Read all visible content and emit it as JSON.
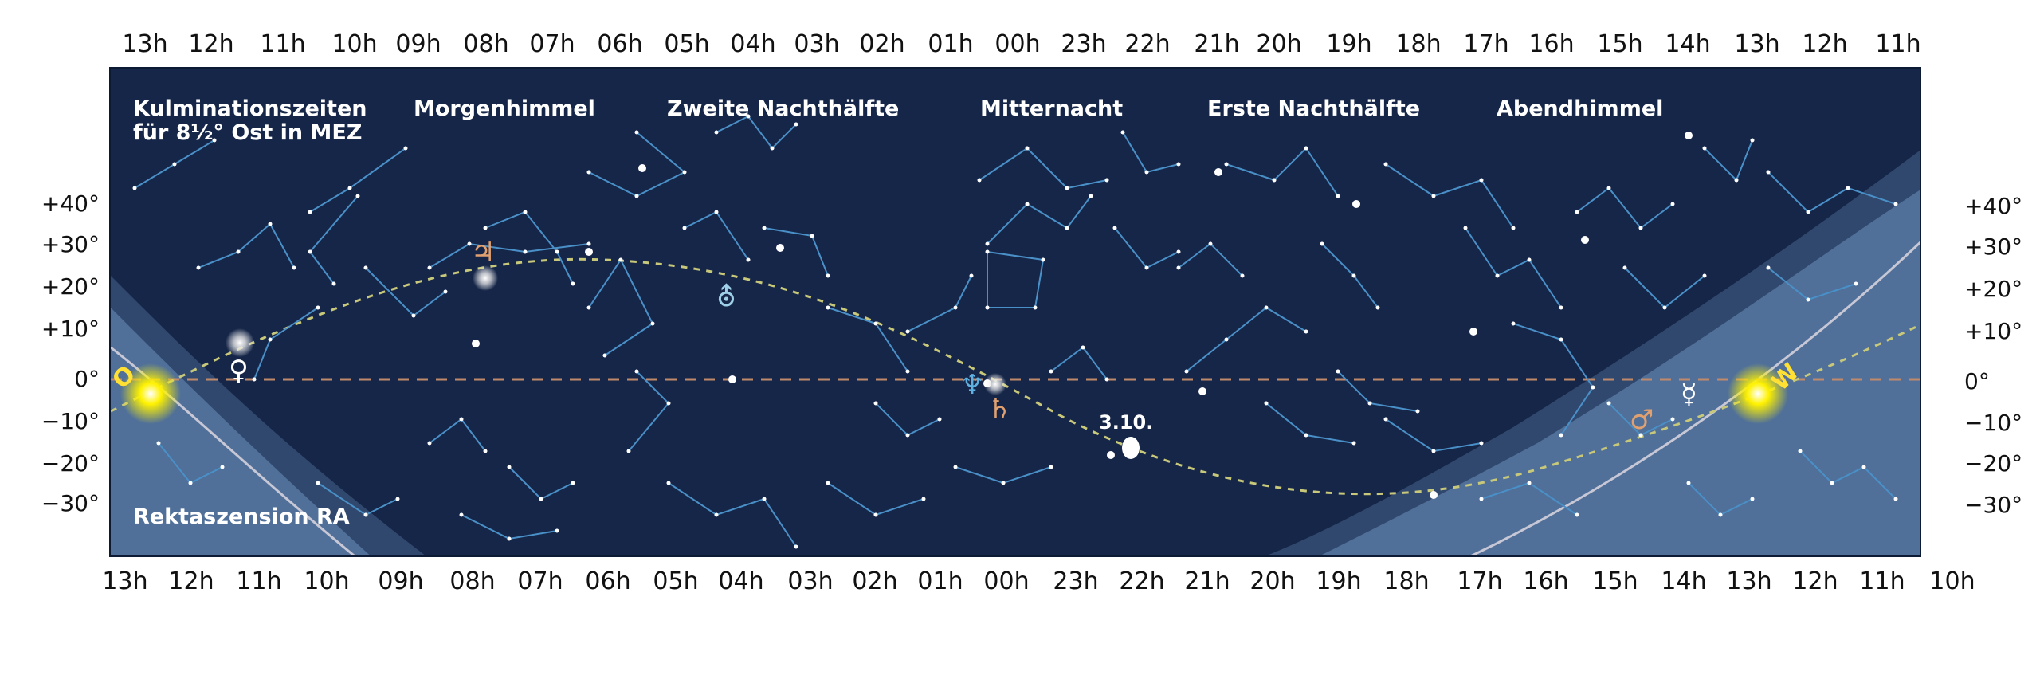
{
  "top_ra_labels": [
    "13h",
    "12h",
    "11h",
    "10h",
    "09h",
    "08h",
    "07h",
    "06h",
    "05h",
    "04h",
    "03h",
    "02h",
    "01h",
    "00h",
    "23h",
    "22h",
    "21h",
    "20h",
    "19h",
    "18h",
    "17h",
    "16h",
    "15h",
    "14h",
    "13h",
    "12h",
    "11h"
  ],
  "bottom_ra_labels": [
    "13h",
    "12h",
    "11h",
    "10h",
    "09h",
    "08h",
    "07h",
    "06h",
    "05h",
    "04h",
    "03h",
    "02h",
    "01h",
    "00h",
    "23h",
    "22h",
    "21h",
    "20h",
    "19h",
    "18h",
    "17h",
    "16h",
    "15h",
    "14h",
    "13h",
    "12h",
    "11h",
    "10h"
  ],
  "declination_labels": [
    "+40°",
    "+30°",
    "+20°",
    "+10°",
    "0°",
    "−10°",
    "−20°",
    "−30°"
  ],
  "culmination_note": "Kulminationszeiten\nfür 8½° Ost in MEZ",
  "sky_sections": [
    "Morgenhimmel",
    "Zweite Nachthälfte",
    "Mitternacht",
    "Erste Nachthälfte",
    "Abendhimmel"
  ],
  "axis_label": "Rektaszension RA",
  "sun_markers": {
    "east": "O",
    "west": "W"
  },
  "moon_date": "3.10.",
  "planets": [
    {
      "symbol": "♃",
      "color": "#e0a070"
    },
    {
      "symbol": "♀",
      "color": "#ffffff"
    },
    {
      "symbol": "⛢",
      "color": "#9fd0ea"
    },
    {
      "symbol": "♆",
      "color": "#5fb0e0"
    },
    {
      "symbol": "♄",
      "color": "#e0a070"
    },
    {
      "symbol": "♂",
      "color": "#e0a070"
    },
    {
      "symbol": "☿",
      "color": "#ffffff"
    }
  ],
  "colors": {
    "sky": "#162648",
    "twilight": "#5b7ea8",
    "constellation": "#4a90c8",
    "ecliptic": "#c8c87a",
    "equator": "#c08a6a",
    "sun": "#fff200"
  }
}
